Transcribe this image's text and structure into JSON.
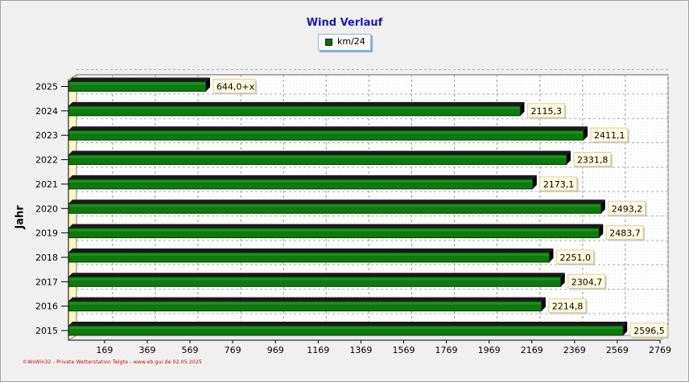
{
  "chart_data": {
    "type": "bar",
    "orientation": "horizontal",
    "title": "Wind Verlauf",
    "ylabel": "Jahr",
    "xlabel": "",
    "legend": {
      "position": "top-center",
      "entries": [
        "km/24"
      ]
    },
    "categories": [
      "2015",
      "2016",
      "2017",
      "2018",
      "2019",
      "2020",
      "2021",
      "2022",
      "2023",
      "2024",
      "2025"
    ],
    "series": [
      {
        "name": "km/24",
        "color": "#0d7a0d",
        "values": [
          2596.5,
          2214.8,
          2304.7,
          2251.0,
          2483.7,
          2493.2,
          2173.1,
          2331.8,
          2411.1,
          2115.3,
          644.0
        ],
        "labels": [
          "2596,5",
          "2214,8",
          "2304,7",
          "2251,0",
          "2483,7",
          "2493,2",
          "2173,1",
          "2331,8",
          "2411,1",
          "2115,3",
          "644,0+x"
        ]
      }
    ],
    "x_ticks": [
      169,
      369,
      569,
      769,
      969,
      1169,
      1369,
      1569,
      1769,
      1969,
      2169,
      2369,
      2569,
      2769
    ],
    "xlim": [
      0,
      2769
    ],
    "grid": true
  },
  "footer": "©WsWin32 - Private Wetterstation Telgte - www.eb.gui.de  02.05.2025"
}
